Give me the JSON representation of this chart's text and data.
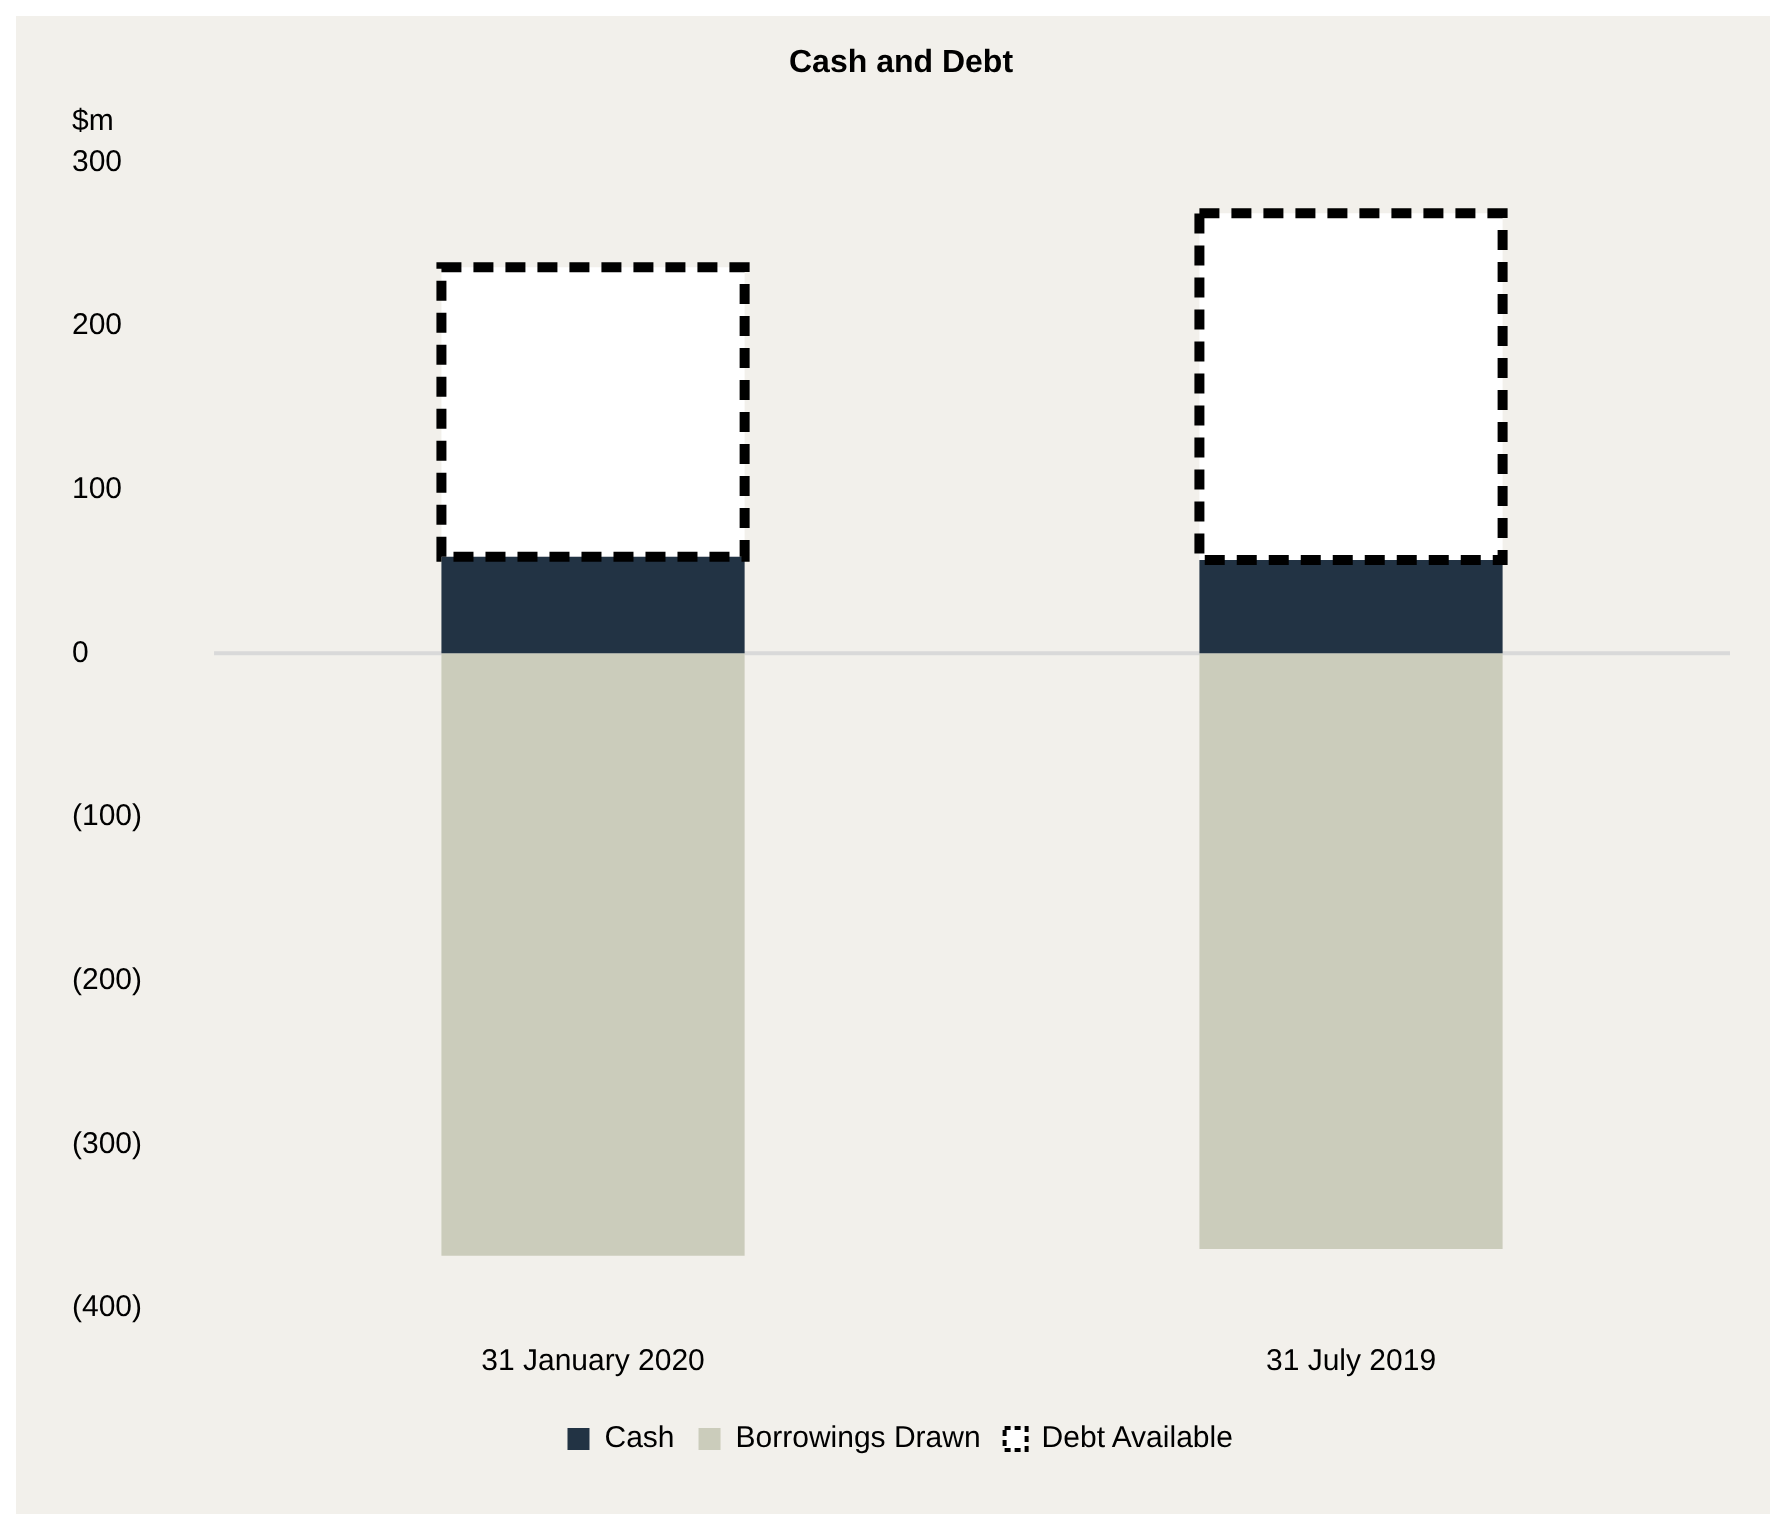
{
  "chart_data": {
    "type": "bar",
    "title": "Cash and Debt",
    "ylabel": "$m",
    "categories": [
      "31 January 2020",
      "31 July 2019"
    ],
    "stacked": true,
    "series": [
      {
        "name": "Cash",
        "color": "#223344",
        "values": [
          59,
          57
        ]
      },
      {
        "name": "Borrowings Drawn",
        "color": "#cbccbb",
        "values": [
          -368,
          -364
        ]
      },
      {
        "name": "Debt Available",
        "color": "#000000",
        "values": [
          177,
          212
        ],
        "line_style": "dashed"
      }
    ],
    "ylim": [
      -400,
      300
    ],
    "yticks": [
      {
        "value": -400,
        "label": "(400)"
      },
      {
        "value": -300,
        "label": "(300)"
      },
      {
        "value": -200,
        "label": "(200)"
      },
      {
        "value": -100,
        "label": "(100)"
      },
      0,
      100,
      200,
      300
    ],
    "ref_lines": [
      {
        "axis": "y",
        "value": 0,
        "color": "#d9d9d9"
      }
    ],
    "grid": false,
    "legend": "bottom"
  }
}
